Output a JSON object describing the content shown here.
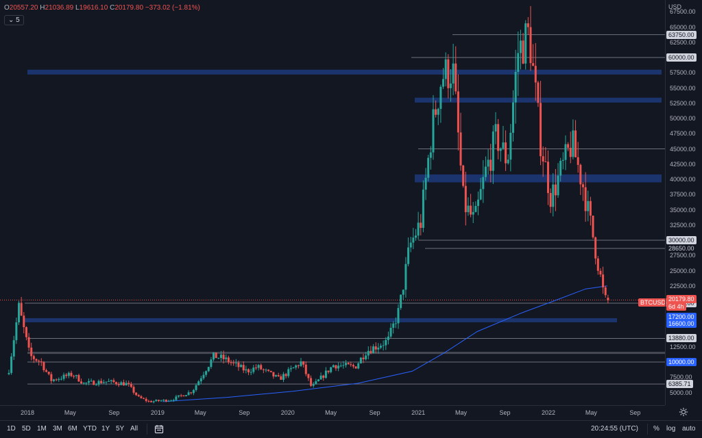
{
  "legend": {
    "o_label": "O",
    "o_value": "20557.20",
    "h_label": "H",
    "h_value": "21036.89",
    "l_label": "L",
    "l_value": "19616.10",
    "c_label": "C",
    "c_value": "20179.80",
    "change": "−373.02 (−1.81%)"
  },
  "collapse_button": {
    "label": "5",
    "icon": "chevron-down-icon"
  },
  "price_axis": {
    "currency": "USD",
    "ticks": [
      "67500.00",
      "65000.00",
      "62500.00",
      "60000.00",
      "57500.00",
      "55000.00",
      "52500.00",
      "50000.00",
      "47500.00",
      "45000.00",
      "42500.00",
      "40000.00",
      "37500.00",
      "35000.00",
      "32500.00",
      "30000.00",
      "27500.00",
      "25000.00",
      "22500.00",
      "20000.00",
      "17500.00",
      "15000.00",
      "12500.00",
      "10000.00",
      "7500.00",
      "5000.00"
    ],
    "current_price": "20179.80",
    "countdown": "6d 4h",
    "symbol": "BTCUSD",
    "level_labels": [
      "63750.00",
      "60000.00",
      "30000.00",
      "28650.00",
      "19666.00",
      "17200.00",
      "16600.00",
      "13880.00",
      "10000.00",
      "6385.71"
    ]
  },
  "time_axis": {
    "ticks": [
      "2018",
      "May",
      "Sep",
      "2019",
      "May",
      "Sep",
      "2020",
      "May",
      "Sep",
      "2021",
      "May",
      "Sep",
      "2022",
      "May",
      "Sep"
    ]
  },
  "bottom_bar": {
    "ranges": [
      "1D",
      "5D",
      "1M",
      "3M",
      "6M",
      "YTD",
      "1Y",
      "5Y",
      "All"
    ],
    "time": "20:24:55 (UTC)",
    "percent": "%",
    "log": "log",
    "auto": "auto"
  },
  "chart_data": {
    "type": "candlestick",
    "symbol": "BTCUSD",
    "interval": "1W",
    "ylim": [
      3000,
      69000
    ],
    "x_ticks": [
      "2018",
      "May",
      "Sep",
      "2019",
      "May",
      "Sep",
      "2020",
      "May",
      "Sep",
      "2021",
      "May",
      "Sep",
      "2022",
      "May",
      "Sep"
    ],
    "last": {
      "open": 20557.2,
      "high": 21036.89,
      "low": 19616.1,
      "close": 20179.8,
      "change": -373.02,
      "change_pct": -1.81
    },
    "price_path": [
      [
        "2017-11",
        8000
      ],
      [
        "2017-12",
        19000
      ],
      [
        "2018-01",
        11000
      ],
      [
        "2018-02",
        10000
      ],
      [
        "2018-03",
        7000
      ],
      [
        "2018-05",
        8000
      ],
      [
        "2018-06",
        6500
      ],
      [
        "2018-08",
        6800
      ],
      [
        "2018-10",
        6400
      ],
      [
        "2018-11",
        4200
      ],
      [
        "2018-12",
        3500
      ],
      [
        "2019-02",
        3800
      ],
      [
        "2019-04",
        5200
      ],
      [
        "2019-06",
        11000
      ],
      [
        "2019-07",
        10500
      ],
      [
        "2019-09",
        8500
      ],
      [
        "2019-10",
        9200
      ],
      [
        "2019-12",
        7200
      ],
      [
        "2020-02",
        10000
      ],
      [
        "2020-03",
        5800
      ],
      [
        "2020-05",
        9500
      ],
      [
        "2020-07",
        9200
      ],
      [
        "2020-08",
        11800
      ],
      [
        "2020-10",
        13500
      ],
      [
        "2020-11",
        18500
      ],
      [
        "2020-12",
        29000
      ],
      [
        "2021-01",
        33000
      ],
      [
        "2021-02",
        48000
      ],
      [
        "2021-03",
        57000
      ],
      [
        "2021-04",
        58000
      ],
      [
        "2021-05",
        36000
      ],
      [
        "2021-06",
        33000
      ],
      [
        "2021-07",
        41000
      ],
      [
        "2021-08",
        47000
      ],
      [
        "2021-09",
        43000
      ],
      [
        "2021-10",
        61000
      ],
      [
        "2021-11",
        64000
      ],
      [
        "2021-12",
        47000
      ],
      [
        "2022-01",
        37000
      ],
      [
        "2022-03",
        46000
      ],
      [
        "2022-04",
        39000
      ],
      [
        "2022-05",
        30000
      ],
      [
        "2022-06",
        20100
      ]
    ],
    "moving_average_200w": [
      [
        "2019-01",
        3500
      ],
      [
        "2019-07",
        4200
      ],
      [
        "2020-01",
        5200
      ],
      [
        "2020-07",
        6500
      ],
      [
        "2020-12",
        8500
      ],
      [
        "2021-03",
        11500
      ],
      [
        "2021-06",
        15000
      ],
      [
        "2021-10",
        18000
      ],
      [
        "2022-01",
        20000
      ],
      [
        "2022-04",
        22000
      ],
      [
        "2022-06",
        22500
      ]
    ],
    "horizontal_levels": [
      63750,
      60000,
      45000,
      30000,
      28650,
      19666,
      13880,
      11500,
      10000,
      6385.71
    ],
    "zones": [
      [
        57200,
        58000
      ],
      [
        52600,
        53400
      ],
      [
        39500,
        40800
      ],
      [
        16600,
        17200
      ]
    ]
  }
}
